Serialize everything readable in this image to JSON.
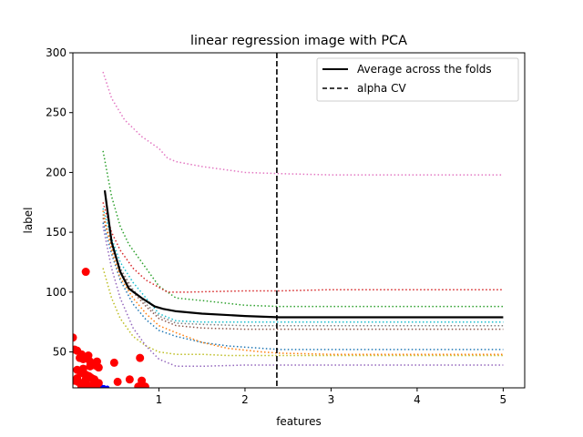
{
  "chart_data": {
    "type": "line",
    "title": "linear regression image with PCA",
    "xlabel": "features",
    "ylabel": "label",
    "xlim": [
      0.0,
      5.25
    ],
    "ylim": [
      20,
      300
    ],
    "x_ticks": [
      1,
      2,
      3,
      4,
      5
    ],
    "y_ticks": [
      50,
      100,
      150,
      200,
      250,
      300
    ],
    "grid": false,
    "legend_position": "top-right",
    "legend": [
      {
        "label": "Average across the folds",
        "style": "solid",
        "color": "#000000"
      },
      {
        "label": "alpha CV",
        "style": "dashed",
        "color": "#000000"
      }
    ],
    "vline": {
      "x": 2.37,
      "style": "dashed",
      "color": "#000000"
    },
    "folds": [
      {
        "color": "#e377c2",
        "x": [
          0.35,
          0.45,
          0.6,
          0.8,
          1.0,
          1.1,
          1.2,
          1.5,
          2.0,
          2.4,
          3.0,
          4.0,
          5.0
        ],
        "y": [
          284,
          262,
          244,
          230,
          220,
          212,
          209,
          205,
          200,
          199,
          198,
          198,
          198
        ]
      },
      {
        "color": "#2ca02c",
        "x": [
          0.35,
          0.45,
          0.55,
          0.65,
          0.8,
          1.0,
          1.2,
          1.5,
          2.0,
          2.4,
          3.0,
          4.0,
          5.0
        ],
        "y": [
          218,
          180,
          155,
          140,
          125,
          105,
          95,
          93,
          89,
          88,
          88,
          88,
          88
        ]
      },
      {
        "color": "#d62728",
        "x": [
          0.35,
          0.45,
          0.55,
          0.7,
          0.85,
          1.0,
          1.1,
          1.3,
          2.0,
          2.4,
          3.0,
          4.0,
          5.0
        ],
        "y": [
          175,
          150,
          135,
          120,
          110,
          104,
          100,
          100,
          101,
          101,
          102,
          102,
          102
        ]
      },
      {
        "color": "#17becf",
        "x": [
          0.35,
          0.45,
          0.55,
          0.7,
          0.85,
          1.0,
          1.2,
          1.5,
          2.0,
          2.4,
          3.0,
          4.0,
          5.0
        ],
        "y": [
          170,
          145,
          125,
          108,
          95,
          82,
          76,
          75,
          75,
          75,
          75,
          75,
          75
        ]
      },
      {
        "color": "#7f7f7f",
        "x": [
          0.35,
          0.45,
          0.55,
          0.7,
          0.85,
          1.0,
          1.2,
          1.5,
          2.0,
          2.4,
          3.0,
          4.0,
          5.0
        ],
        "y": [
          165,
          140,
          120,
          102,
          90,
          80,
          74,
          73,
          72,
          72,
          72,
          72,
          72
        ]
      },
      {
        "color": "#8c564b",
        "x": [
          0.35,
          0.45,
          0.55,
          0.7,
          0.85,
          1.0,
          1.2,
          1.5,
          2.0,
          2.4,
          3.0,
          4.0,
          5.0
        ],
        "y": [
          162,
          138,
          118,
          100,
          88,
          78,
          72,
          70,
          69,
          69,
          69,
          69,
          69
        ]
      },
      {
        "color": "#1f77b4",
        "x": [
          0.35,
          0.45,
          0.55,
          0.7,
          0.85,
          1.0,
          1.2,
          1.5,
          1.8,
          2.2,
          2.4,
          3.0,
          4.0,
          5.0
        ],
        "y": [
          158,
          132,
          110,
          90,
          77,
          68,
          63,
          58,
          55,
          53,
          52,
          52,
          52,
          52
        ]
      },
      {
        "color": "#bcbd22",
        "x": [
          0.35,
          0.45,
          0.55,
          0.7,
          0.85,
          1.0,
          1.2,
          1.5,
          1.8,
          2.2,
          2.4,
          3.0,
          4.0,
          5.0
        ],
        "y": [
          120,
          95,
          78,
          63,
          55,
          50,
          48,
          48,
          47,
          47,
          47,
          47,
          47,
          47
        ]
      },
      {
        "color": "#ff7f0e",
        "x": [
          0.35,
          0.45,
          0.55,
          0.7,
          0.85,
          1.0,
          1.2,
          1.5,
          1.8,
          2.2,
          2.4,
          3.0,
          4.0,
          5.0
        ],
        "y": [
          168,
          135,
          112,
          95,
          82,
          72,
          66,
          58,
          53,
          50,
          49,
          48,
          48,
          48
        ]
      },
      {
        "color": "#9467bd",
        "x": [
          0.35,
          0.45,
          0.55,
          0.7,
          0.85,
          1.0,
          1.2,
          1.5,
          2.0,
          2.4,
          3.0,
          4.0,
          5.0
        ],
        "y": [
          155,
          120,
          95,
          70,
          55,
          44,
          38,
          38,
          39,
          39,
          39,
          39,
          39
        ]
      }
    ],
    "average": {
      "color": "#000000",
      "x": [
        0.37,
        0.45,
        0.55,
        0.65,
        0.8,
        0.95,
        1.05,
        1.2,
        1.5,
        2.0,
        2.4,
        3.0,
        4.0,
        5.0
      ],
      "y": [
        185,
        142,
        117,
        103,
        95,
        88,
        86,
        84,
        82,
        80,
        79,
        79,
        79,
        79
      ]
    },
    "scatter_red": {
      "color": "#ff0000",
      "x": [
        0.0,
        0.02,
        0.05,
        0.08,
        0.1,
        0.12,
        0.15,
        0.18,
        0.2,
        0.22,
        0.25,
        0.28,
        0.3,
        0.05,
        0.08,
        0.1,
        0.12,
        0.15,
        0.18,
        0.2,
        0.22,
        0.25,
        0.02,
        0.06,
        0.1,
        0.14,
        0.18,
        0.22,
        0.26,
        0.3,
        0.12,
        0.2,
        0.28,
        0.05,
        0.15,
        0.25,
        0.1,
        0.15,
        0.27,
        0.48,
        0.52,
        0.66,
        0.76,
        0.8,
        0.84,
        0.78
      ],
      "y": [
        62,
        52,
        51,
        45,
        48,
        44,
        117,
        47,
        42,
        40,
        39,
        38,
        37,
        35,
        34,
        33,
        32,
        31,
        30,
        29,
        28,
        27,
        26,
        25,
        24,
        23,
        22,
        21,
        22,
        24,
        36,
        38,
        42,
        28,
        27,
        26,
        21,
        22,
        21,
        41,
        25,
        27,
        21,
        26,
        21,
        45
      ]
    },
    "scatter_blue": {
      "color": "#0000ff",
      "x": [
        0.3,
        0.33,
        0.36,
        0.4
      ],
      "y": [
        22,
        21,
        20.5,
        20
      ]
    }
  }
}
